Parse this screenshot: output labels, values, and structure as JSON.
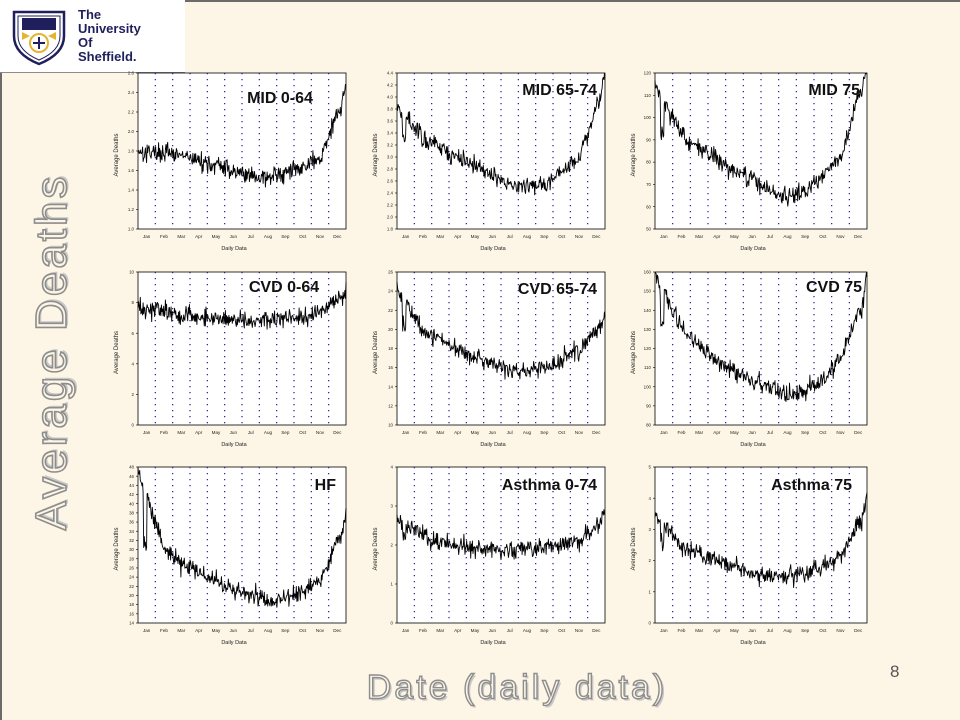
{
  "slide": {
    "logo_lines": [
      "The",
      "University",
      "Of",
      "Sheffield."
    ],
    "y_title": "Average Deaths",
    "x_title": "Date (daily data)",
    "page_number": "8"
  },
  "colors": {
    "background": "#fdf6e6",
    "plot_background": "#ffffff",
    "series": "#000000",
    "gridline": "#1a1aa6",
    "logo_blue": "#1f1f5c",
    "logo_gold": "#e5b430"
  },
  "chart_data": [
    {
      "type": "line",
      "title": "MID 0-64",
      "xlabel": "Daily Data",
      "ylabel": "Average Deaths",
      "x_ticks": [
        "Jan",
        "Feb",
        "Mar",
        "Apr",
        "May",
        "Jun",
        "Jul",
        "Aug",
        "Sep",
        "Oct",
        "Nov",
        "Dec"
      ],
      "grid": "vertical-dotted",
      "ylim": [
        1.0,
        2.6
      ],
      "y_ticks": [
        "1.0",
        "1.2",
        "1.4",
        "1.6",
        "1.8",
        "2.0",
        "2.2",
        "2.4",
        "2.6"
      ],
      "series": [
        {
          "x": [
            "Jan",
            "Feb",
            "Mar",
            "Apr",
            "May",
            "Jun",
            "Jul",
            "Aug",
            "Sep",
            "Oct",
            "Nov",
            "Dec"
          ],
          "values": [
            1.8,
            1.78,
            1.75,
            1.7,
            1.65,
            1.6,
            1.55,
            1.52,
            1.57,
            1.65,
            1.72,
            2.2
          ]
        }
      ]
    },
    {
      "type": "line",
      "title": "MID 65-74",
      "xlabel": "Daily Data",
      "ylabel": "Average Deaths",
      "x_ticks": [
        "Jan",
        "Feb",
        "Mar",
        "Apr",
        "May",
        "Jun",
        "Jul",
        "Aug",
        "Sep",
        "Oct",
        "Nov",
        "Dec"
      ],
      "grid": "vertical-dotted",
      "ylim": [
        1.8,
        4.4
      ],
      "y_ticks": [
        "1.8",
        "2.0",
        "2.2",
        "2.4",
        "2.6",
        "2.8",
        "3.0",
        "3.2",
        "3.4",
        "3.6",
        "3.8",
        "4.0",
        "4.2",
        "4.4"
      ],
      "series": [
        {
          "x": [
            "Jan",
            "Feb",
            "Mar",
            "Apr",
            "May",
            "Jun",
            "Jul",
            "Aug",
            "Sep",
            "Oct",
            "Nov",
            "Dec"
          ],
          "values": [
            3.7,
            3.3,
            3.15,
            3.0,
            2.85,
            2.7,
            2.55,
            2.5,
            2.55,
            2.75,
            3.0,
            3.9
          ]
        }
      ]
    },
    {
      "type": "line",
      "title": "MID 75",
      "xlabel": "Daily Data",
      "ylabel": "Average Deaths",
      "x_ticks": [
        "Jan",
        "Feb",
        "Mar",
        "Apr",
        "May",
        "Jun",
        "Jul",
        "Aug",
        "Sep",
        "Oct",
        "Nov",
        "Dec"
      ],
      "grid": "vertical-dotted",
      "ylim": [
        50,
        120
      ],
      "y_ticks": [
        "50",
        "60",
        "70",
        "80",
        "90",
        "100",
        "110",
        "120"
      ],
      "series": [
        {
          "x": [
            "Jan",
            "Feb",
            "Mar",
            "Apr",
            "May",
            "Jun",
            "Jul",
            "Aug",
            "Sep",
            "Oct",
            "Nov",
            "Dec"
          ],
          "values": [
            108,
            92,
            86,
            81,
            76,
            72,
            68,
            64,
            68,
            74,
            82,
            110
          ]
        }
      ]
    },
    {
      "type": "line",
      "title": "CVD 0-64",
      "xlabel": "Daily Data",
      "ylabel": "Average Deaths",
      "x_ticks": [
        "Jan",
        "Feb",
        "Mar",
        "Apr",
        "May",
        "Jun",
        "Jul",
        "Aug",
        "Sep",
        "Oct",
        "Nov",
        "Dec"
      ],
      "grid": "vertical-dotted",
      "ylim": [
        0,
        10
      ],
      "y_ticks": [
        "0",
        "2",
        "4",
        "6",
        "8",
        "10"
      ],
      "series": [
        {
          "x": [
            "Jan",
            "Feb",
            "Mar",
            "Apr",
            "May",
            "Jun",
            "Jul",
            "Aug",
            "Sep",
            "Oct",
            "Nov",
            "Dec"
          ],
          "values": [
            7.6,
            7.4,
            7.2,
            7.1,
            7.0,
            6.9,
            6.8,
            6.9,
            7.0,
            7.1,
            7.4,
            8.2
          ]
        }
      ]
    },
    {
      "type": "line",
      "title": "CVD 65-74",
      "xlabel": "Daily Data",
      "ylabel": "Average Deaths",
      "x_ticks": [
        "Jan",
        "Feb",
        "Mar",
        "Apr",
        "May",
        "Jun",
        "Jul",
        "Aug",
        "Sep",
        "Oct",
        "Nov",
        "Dec"
      ],
      "grid": "vertical-dotted",
      "ylim": [
        10,
        26
      ],
      "y_ticks": [
        "10",
        "12",
        "14",
        "16",
        "18",
        "20",
        "22",
        "24",
        "26"
      ],
      "series": [
        {
          "x": [
            "Jan",
            "Feb",
            "Mar",
            "Apr",
            "May",
            "Jun",
            "Jul",
            "Aug",
            "Sep",
            "Oct",
            "Nov",
            "Dec"
          ],
          "values": [
            23,
            20,
            19,
            18,
            17,
            16.3,
            15.8,
            15.6,
            16,
            16.8,
            18,
            20
          ]
        }
      ]
    },
    {
      "type": "line",
      "title": "CVD 75",
      "xlabel": "Daily Data",
      "ylabel": "Average Deaths",
      "x_ticks": [
        "Jan",
        "Feb",
        "Mar",
        "Apr",
        "May",
        "Jun",
        "Jul",
        "Aug",
        "Sep",
        "Oct",
        "Nov",
        "Dec"
      ],
      "grid": "vertical-dotted",
      "ylim": [
        80,
        160
      ],
      "y_ticks": [
        "80",
        "90",
        "100",
        "110",
        "120",
        "130",
        "140",
        "150",
        "160"
      ],
      "series": [
        {
          "x": [
            "Jan",
            "Feb",
            "Mar",
            "Apr",
            "May",
            "Jun",
            "Jul",
            "Aug",
            "Sep",
            "Oct",
            "Nov",
            "Dec"
          ],
          "values": [
            150,
            130,
            122,
            114,
            108,
            103,
            100,
            96,
            98,
            104,
            114,
            140
          ]
        }
      ]
    },
    {
      "type": "line",
      "title": "HF",
      "xlabel": "Daily Data",
      "ylabel": "Average Deaths",
      "x_ticks": [
        "Jan",
        "Feb",
        "Mar",
        "Apr",
        "May",
        "Jun",
        "Jul",
        "Aug",
        "Sep",
        "Oct",
        "Nov",
        "Dec"
      ],
      "grid": "vertical-dotted",
      "ylim": [
        14,
        48
      ],
      "y_ticks": [
        "14",
        "16",
        "18",
        "20",
        "22",
        "24",
        "26",
        "28",
        "30",
        "32",
        "34",
        "36",
        "38",
        "40",
        "42",
        "44",
        "46",
        "48"
      ],
      "series": [
        {
          "x": [
            "Jan",
            "Feb",
            "Mar",
            "Apr",
            "May",
            "Jun",
            "Jul",
            "Aug",
            "Sep",
            "Oct",
            "Nov",
            "Dec"
          ],
          "values": [
            42,
            30,
            27,
            25,
            23,
            21,
            20,
            19,
            19.5,
            21,
            23,
            32
          ]
        }
      ]
    },
    {
      "type": "line",
      "title": "Asthma 0-74",
      "xlabel": "Daily Data",
      "ylabel": "Average Deaths",
      "x_ticks": [
        "Jan",
        "Feb",
        "Mar",
        "Apr",
        "May",
        "Jun",
        "Jul",
        "Aug",
        "Sep",
        "Oct",
        "Nov",
        "Dec"
      ],
      "grid": "vertical-dotted",
      "ylim": [
        0,
        4
      ],
      "y_ticks": [
        "0",
        "1",
        "2",
        "3",
        "4"
      ],
      "series": [
        {
          "x": [
            "Jan",
            "Feb",
            "Mar",
            "Apr",
            "May",
            "Jun",
            "Jul",
            "Aug",
            "Sep",
            "Oct",
            "Nov",
            "Dec"
          ],
          "values": [
            2.5,
            2.2,
            2.1,
            2.0,
            1.9,
            1.9,
            1.85,
            1.9,
            1.95,
            2.0,
            2.1,
            2.5
          ]
        }
      ]
    },
    {
      "type": "line",
      "title": "Asthma 75",
      "xlabel": "Daily Data",
      "ylabel": "Average Deaths",
      "x_ticks": [
        "Jan",
        "Feb",
        "Mar",
        "Apr",
        "May",
        "Jun",
        "Jul",
        "Aug",
        "Sep",
        "Oct",
        "Nov",
        "Dec"
      ],
      "grid": "vertical-dotted",
      "ylim": [
        0,
        5
      ],
      "y_ticks": [
        "0",
        "1",
        "2",
        "3",
        "4",
        "5"
      ],
      "series": [
        {
          "x": [
            "Jan",
            "Feb",
            "Mar",
            "Apr",
            "May",
            "Jun",
            "Jul",
            "Aug",
            "Sep",
            "Oct",
            "Nov",
            "Dec"
          ],
          "values": [
            3.2,
            2.5,
            2.2,
            2.0,
            1.8,
            1.6,
            1.5,
            1.5,
            1.6,
            1.8,
            2.1,
            3.2
          ]
        }
      ]
    }
  ]
}
